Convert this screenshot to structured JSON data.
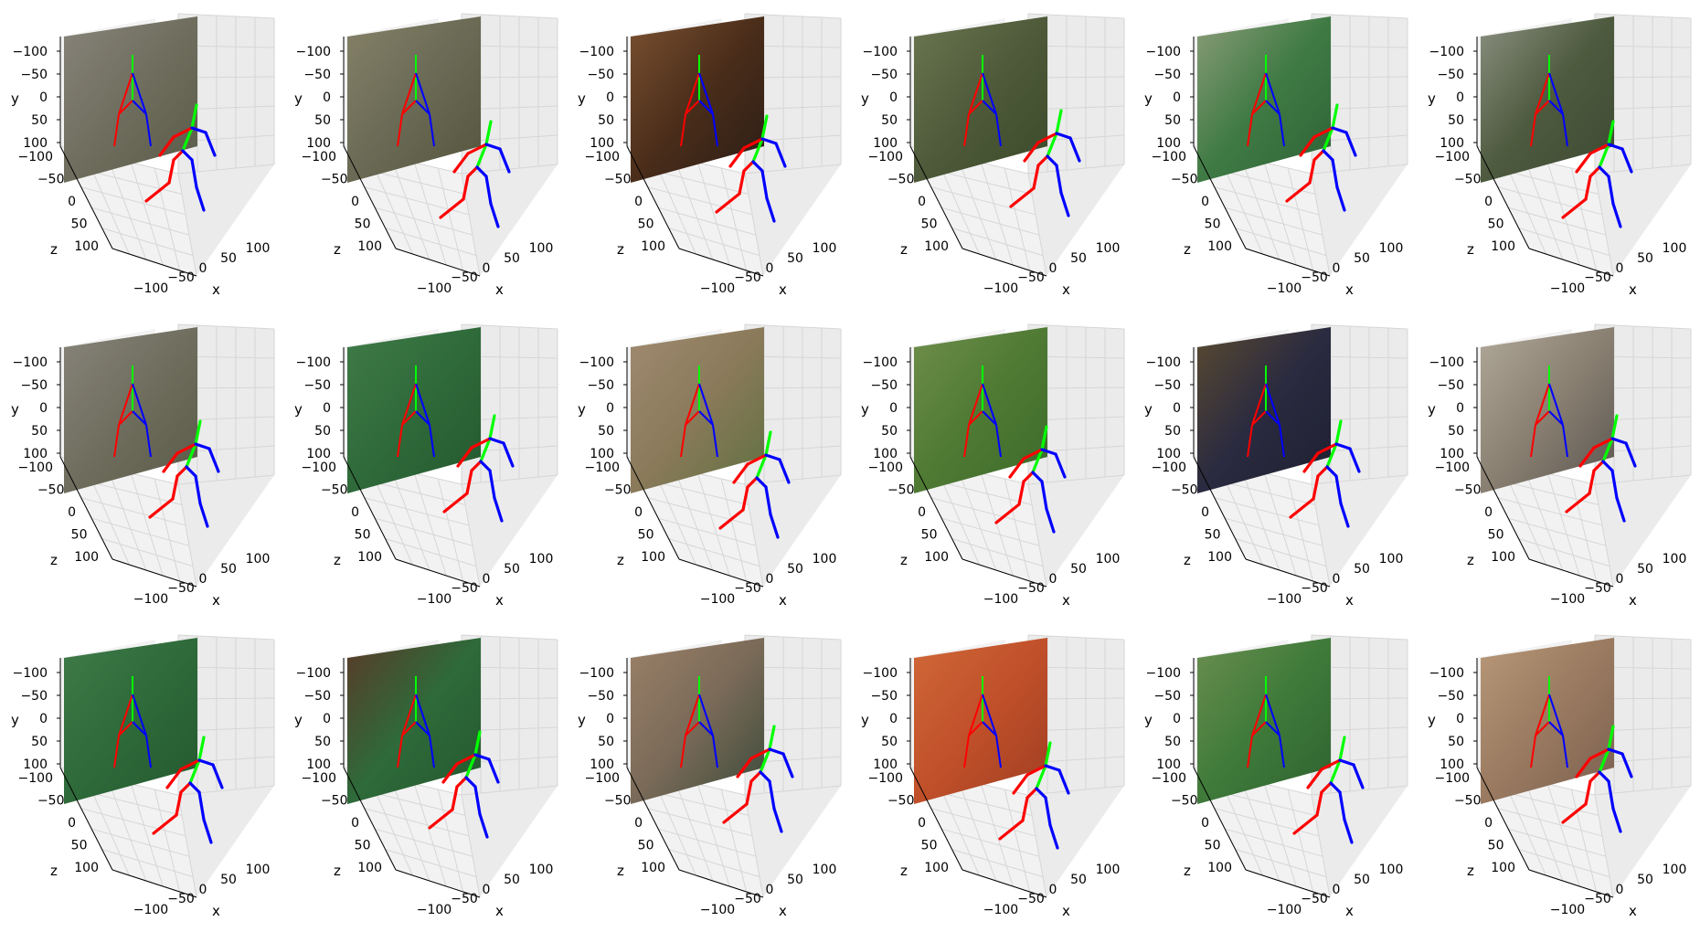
{
  "figure": {
    "rows": 3,
    "cols": 6,
    "colors": {
      "left_limb": "#ff0000",
      "right_limb": "#0000ff",
      "spine": "#00ff00",
      "pane": "#f2f2f2",
      "grid": "#d6d6d6",
      "axis": "#000000"
    }
  },
  "chart_data": {
    "type": "scatter",
    "subtype": "3d-skeleton-grid",
    "axes": {
      "xlabel": "x",
      "ylabel": "y",
      "zlabel": "z",
      "xticks": [
        "−100",
        "−50",
        "0",
        "50",
        "100"
      ],
      "yticks": [
        "−100",
        "−50",
        "0",
        "50",
        "100"
      ],
      "zticks": [
        "−100",
        "−50",
        "0",
        "50",
        "100"
      ],
      "xlim": [
        -125,
        125
      ],
      "ylim": [
        -125,
        125
      ],
      "zlim": [
        -125,
        125
      ],
      "grid": true
    },
    "panels": [
      {
        "photo": [
          "#6f6e5e",
          "#5a5a48",
          "#87837a"
        ]
      },
      {
        "photo": [
          "#6a6a55",
          "#55553e",
          "#858168"
        ]
      },
      {
        "photo": [
          "#4a2d1a",
          "#2b1d16",
          "#7a5030"
        ]
      },
      {
        "photo": [
          "#4e5a3a",
          "#3a4a2a",
          "#6b7550"
        ]
      },
      {
        "photo": [
          "#3f7a44",
          "#2e6236",
          "#8a9c78"
        ]
      },
      {
        "photo": [
          "#4d5a3e",
          "#3d4a33",
          "#8b8f80"
        ]
      },
      {
        "photo": [
          "#6f6e5e",
          "#5a5a48",
          "#87837a"
        ]
      },
      {
        "photo": [
          "#2f6a3a",
          "#24582e",
          "#3f7a48"
        ]
      },
      {
        "photo": [
          "#8a7a5a",
          "#5f7040",
          "#a08a70"
        ]
      },
      {
        "photo": [
          "#4f7a34",
          "#3c6a2a",
          "#6e8e4a"
        ]
      },
      {
        "photo": [
          "#2a2a40",
          "#1e2030",
          "#5a4a30"
        ]
      },
      {
        "photo": [
          "#8a8072",
          "#5a5550",
          "#b0a898"
        ]
      },
      {
        "photo": [
          "#2e6a3a",
          "#24582e",
          "#3f7a48"
        ]
      },
      {
        "photo": [
          "#2e6a3a",
          "#24582e",
          "#5a3a28"
        ]
      },
      {
        "photo": [
          "#7a6a58",
          "#3a4a3a",
          "#9a8068"
        ]
      },
      {
        "photo": [
          "#c0502a",
          "#a03e22",
          "#d06838"
        ]
      },
      {
        "photo": [
          "#3f7a3a",
          "#2e6230",
          "#6a8e50"
        ]
      },
      {
        "photo": [
          "#9a7a60",
          "#7a6050",
          "#b89878"
        ]
      }
    ]
  }
}
